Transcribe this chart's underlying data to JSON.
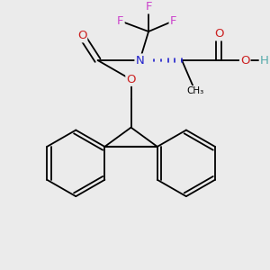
{
  "background_color": "#ebebeb",
  "colors": {
    "F": "#cc44cc",
    "N": "#2222cc",
    "O": "#cc2222",
    "C": "#000000",
    "H": "#55aaaa",
    "bond": "#000000"
  },
  "figsize": [
    3.0,
    3.0
  ],
  "dpi": 100
}
